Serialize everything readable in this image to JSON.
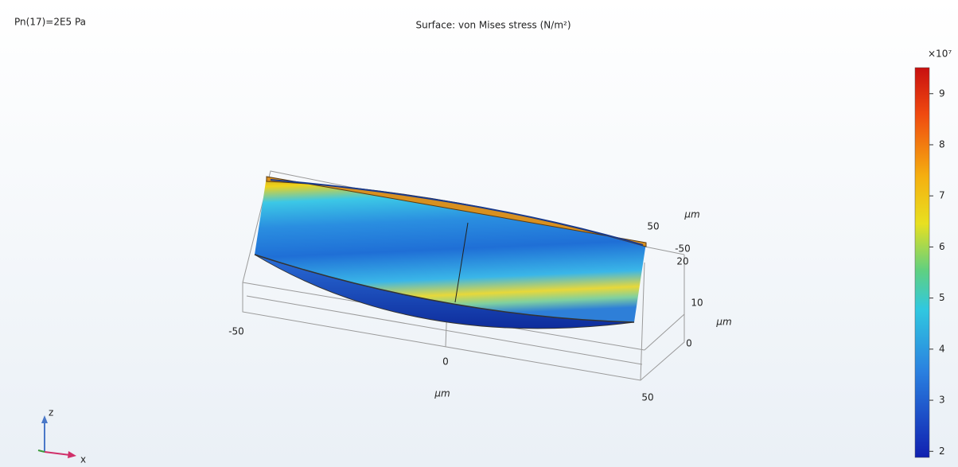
{
  "parameter": "Pn(17)=2E5 Pa",
  "title": "Surface: von Mises stress (N/m²)",
  "axes": {
    "x": {
      "ticks": [
        "-50",
        "0",
        "50"
      ],
      "unit": "μm"
    },
    "y": {
      "ticks": [
        "50",
        "-50"
      ],
      "unit": "μm"
    },
    "z": {
      "ticks": [
        "20",
        "10",
        "0"
      ],
      "unit": "μm"
    }
  },
  "colorbar": {
    "multiplier": "×10⁷",
    "range": [
      1.88,
      9.51
    ],
    "ticks": [
      2,
      3,
      4,
      5,
      6,
      7,
      8,
      9
    ]
  },
  "triad": {
    "z": "z",
    "x": "x"
  }
}
